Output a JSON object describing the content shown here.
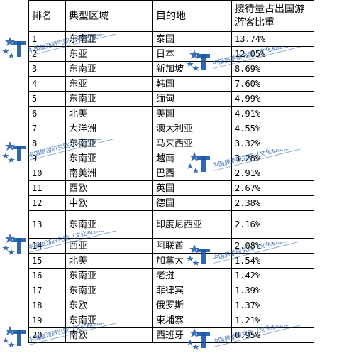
{
  "table": {
    "headers": [
      "排名",
      "典型区域",
      "目的地",
      "接待量占出国游游客比重"
    ],
    "rows": [
      {
        "rank": "1",
        "region": "东南亚",
        "destination": "泰国",
        "share": "13.74%"
      },
      {
        "rank": "2",
        "region": "东亚",
        "destination": "日本",
        "share": "12.05%"
      },
      {
        "rank": "3",
        "region": "东南亚",
        "destination": "新加坡",
        "share": "8.69%"
      },
      {
        "rank": "4",
        "region": "东亚",
        "destination": "韩国",
        "share": "7.60%"
      },
      {
        "rank": "5",
        "region": "东南亚",
        "destination": "缅甸",
        "share": "4.99%"
      },
      {
        "rank": "6",
        "region": "北美",
        "destination": "美国",
        "share": "4.91%"
      },
      {
        "rank": "7",
        "region": "大洋洲",
        "destination": "澳大利亚",
        "share": "4.55%"
      },
      {
        "rank": "8",
        "region": "东南亚",
        "destination": "马来西亚",
        "share": "3.32%"
      },
      {
        "rank": "9",
        "region": "东南亚",
        "destination": "越南",
        "share": "3.28%"
      },
      {
        "rank": "10",
        "region": "南美洲",
        "destination": "巴西",
        "share": "2.91%"
      },
      {
        "rank": "11",
        "region": "西欧",
        "destination": "英国",
        "share": "2.67%"
      },
      {
        "rank": "12",
        "region": "中欧",
        "destination": "德国",
        "share": "2.38%"
      },
      {
        "rank": "13",
        "region": "东南亚",
        "destination": "印度尼西亚",
        "share": "2.16%"
      },
      {
        "rank": "14",
        "region": "西亚",
        "destination": "阿联酋",
        "share": "2.08%"
      },
      {
        "rank": "15",
        "region": "北美",
        "destination": "加拿大",
        "share": "1.54%"
      },
      {
        "rank": "16",
        "region": "东南亚",
        "destination": "老挝",
        "share": "1.42%"
      },
      {
        "rank": "17",
        "region": "东南亚",
        "destination": "菲律宾",
        "share": "1.39%"
      },
      {
        "rank": "18",
        "region": "东欧",
        "destination": "俄罗斯",
        "share": "1.37%"
      },
      {
        "rank": "19",
        "region": "东南亚",
        "destination": "柬埔寨",
        "share": "1.21%"
      },
      {
        "rank": "20",
        "region": "南欧",
        "destination": "西班牙",
        "share": "0.95%"
      }
    ]
  },
  "watermark": {
    "icon": "star-t-logo-icon",
    "text": "中国旅游研究院（文化和旅游部数据中心）",
    "color": "#1a56a8"
  }
}
